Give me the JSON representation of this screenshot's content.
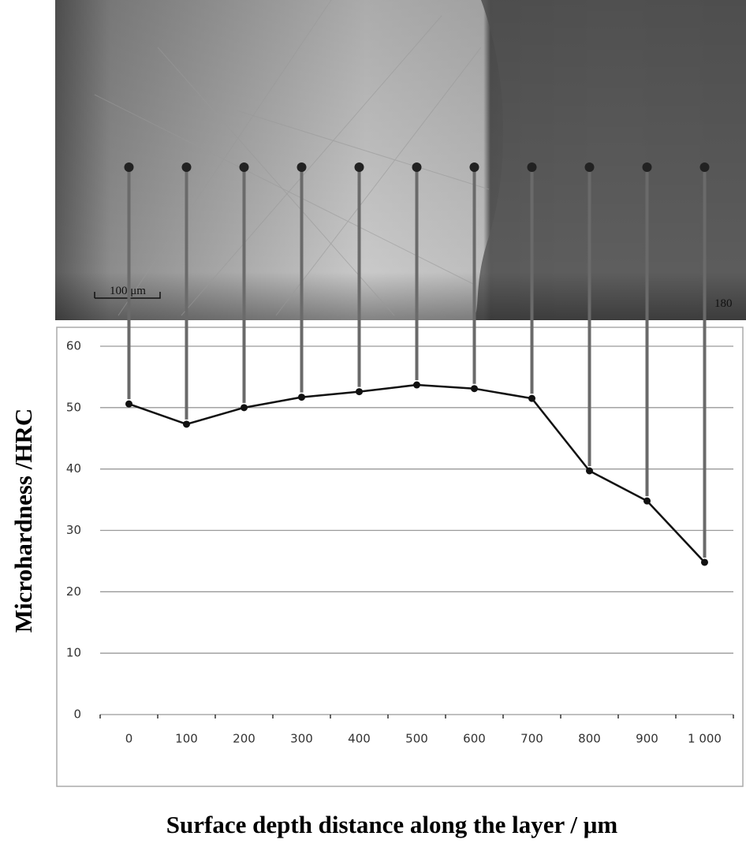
{
  "chart_data": {
    "type": "line",
    "x_label": "Surface depth distance along the layer / μm",
    "y_label": "Microhardness /HRC",
    "categories": [
      "0",
      "100",
      "200",
      "300",
      "400",
      "500",
      "600",
      "700",
      "800",
      "900",
      "1 000"
    ],
    "series": [
      {
        "color": "#111111",
        "values": [
          50.6,
          47.3,
          50.0,
          51.7,
          52.6,
          53.7,
          53.1,
          51.5,
          39.7,
          34.8,
          24.8
        ]
      }
    ],
    "ylim": [
      0,
      60
    ],
    "yticks": [
      0,
      10,
      20,
      30,
      40,
      50,
      60
    ],
    "grid": true,
    "micrograph": {
      "scale_bar": "100 μm",
      "label": "180"
    }
  }
}
